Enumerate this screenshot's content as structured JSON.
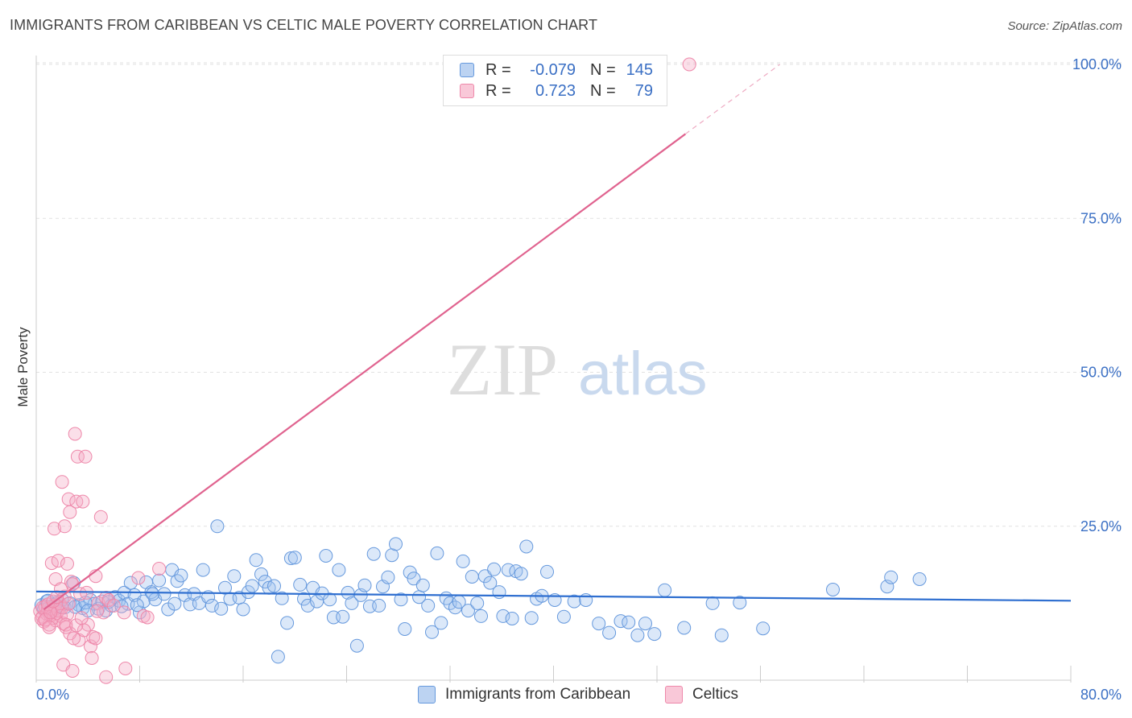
{
  "title": "IMMIGRANTS FROM CARIBBEAN VS CELTIC MALE POVERTY CORRELATION CHART",
  "source": "Source: ZipAtlas.com",
  "watermark": {
    "zip": "ZIP",
    "atlas": "atlas"
  },
  "legend": {
    "rows": [
      {
        "r_label": "R =",
        "r_value": "-0.079",
        "n_label": "N =",
        "n_value": "145",
        "color": "#6699dd"
      },
      {
        "r_label": "R =",
        "r_value": "0.723",
        "n_label": "N =",
        "n_value": "79",
        "color": "#ee88aa"
      }
    ]
  },
  "bottom_legend": {
    "items": [
      {
        "label": "Immigrants from Caribbean",
        "color": "#6699dd"
      },
      {
        "label": "Celtics",
        "color": "#ee88aa"
      }
    ]
  },
  "chart_data": {
    "type": "scatter",
    "title": "IMMIGRANTS FROM CARIBBEAN VS CELTIC MALE POVERTY CORRELATION CHART",
    "xlabel": "",
    "ylabel": "Male Poverty",
    "xlim": [
      0,
      80
    ],
    "ylim": [
      0,
      102
    ],
    "x_tick_labels": [
      "0.0%",
      "80.0%"
    ],
    "y_ticks": [
      25,
      50,
      75,
      100
    ],
    "y_tick_labels": [
      "25.0%",
      "50.0%",
      "75.0%",
      "100.0%"
    ],
    "grid": true,
    "legend_position": "top-center",
    "series": [
      {
        "name": "Immigrants from Caribbean",
        "color": "#6699dd",
        "trend": {
          "x": [
            0,
            80
          ],
          "y": [
            14.4,
            12.9
          ]
        },
        "points": [
          [
            0.4,
            12.2
          ],
          [
            0.6,
            11.5
          ],
          [
            0.8,
            12.8
          ],
          [
            1.0,
            11.0
          ],
          [
            1.2,
            12.0
          ],
          [
            1.4,
            11.4
          ],
          [
            1.6,
            12.6
          ],
          [
            1.9,
            12.0
          ],
          [
            2.2,
            11.8
          ],
          [
            2.6,
            12.5
          ],
          [
            2.9,
            15.8
          ],
          [
            3.3,
            12.2
          ],
          [
            3.6,
            11.7
          ],
          [
            4.2,
            13.0
          ],
          [
            4.5,
            12.4
          ],
          [
            4.8,
            11.6
          ],
          [
            5.1,
            12.8
          ],
          [
            5.4,
            11.3
          ],
          [
            5.8,
            12.1
          ],
          [
            6.1,
            13.5
          ],
          [
            6.4,
            12.9
          ],
          [
            6.8,
            14.2
          ],
          [
            7.1,
            12.4
          ],
          [
            7.3,
            15.8
          ],
          [
            7.6,
            13.8
          ],
          [
            8.0,
            11.0
          ],
          [
            8.3,
            12.8
          ],
          [
            8.5,
            15.9
          ],
          [
            8.9,
            14.3
          ],
          [
            9.2,
            13.1
          ],
          [
            9.5,
            16.2
          ],
          [
            9.9,
            14.0
          ],
          [
            10.2,
            11.5
          ],
          [
            10.5,
            17.9
          ],
          [
            10.9,
            16.1
          ],
          [
            11.2,
            17.0
          ],
          [
            11.5,
            13.8
          ],
          [
            11.9,
            12.3
          ],
          [
            12.2,
            14.0
          ],
          [
            12.6,
            12.5
          ],
          [
            12.9,
            17.9
          ],
          [
            13.3,
            13.5
          ],
          [
            13.6,
            12.1
          ],
          [
            14.0,
            25.0
          ],
          [
            14.3,
            11.6
          ],
          [
            14.6,
            15.0
          ],
          [
            15.0,
            13.2
          ],
          [
            15.3,
            16.9
          ],
          [
            15.7,
            13.4
          ],
          [
            16.0,
            11.5
          ],
          [
            16.4,
            14.3
          ],
          [
            16.7,
            15.3
          ],
          [
            17.0,
            19.5
          ],
          [
            17.4,
            17.2
          ],
          [
            17.7,
            16.0
          ],
          [
            18.0,
            15.0
          ],
          [
            18.4,
            15.3
          ],
          [
            18.7,
            3.8
          ],
          [
            19.0,
            13.3
          ],
          [
            19.4,
            9.3
          ],
          [
            19.7,
            19.8
          ],
          [
            20.0,
            19.9
          ],
          [
            20.4,
            15.5
          ],
          [
            20.7,
            13.2
          ],
          [
            21.0,
            12.1
          ],
          [
            21.4,
            15.0
          ],
          [
            21.7,
            12.8
          ],
          [
            22.1,
            14.1
          ],
          [
            22.4,
            20.2
          ],
          [
            22.7,
            13.1
          ],
          [
            23.0,
            10.2
          ],
          [
            23.4,
            17.9
          ],
          [
            23.7,
            10.3
          ],
          [
            24.1,
            14.2
          ],
          [
            24.4,
            12.5
          ],
          [
            24.8,
            5.6
          ],
          [
            25.1,
            13.8
          ],
          [
            25.4,
            15.4
          ],
          [
            25.8,
            12.0
          ],
          [
            26.1,
            20.5
          ],
          [
            26.5,
            12.1
          ],
          [
            26.8,
            15.2
          ],
          [
            27.2,
            16.7
          ],
          [
            27.5,
            20.3
          ],
          [
            27.8,
            22.1
          ],
          [
            28.2,
            13.1
          ],
          [
            28.5,
            8.3
          ],
          [
            28.9,
            17.5
          ],
          [
            29.2,
            16.5
          ],
          [
            29.6,
            13.5
          ],
          [
            29.9,
            15.4
          ],
          [
            30.3,
            12.1
          ],
          [
            30.6,
            7.8
          ],
          [
            31.0,
            20.6
          ],
          [
            31.3,
            9.3
          ],
          [
            31.7,
            13.3
          ],
          [
            32.0,
            12.5
          ],
          [
            32.4,
            11.8
          ],
          [
            32.7,
            12.7
          ],
          [
            33.0,
            19.3
          ],
          [
            33.4,
            11.3
          ],
          [
            33.7,
            16.8
          ],
          [
            34.1,
            12.5
          ],
          [
            34.4,
            10.4
          ],
          [
            34.7,
            16.9
          ],
          [
            35.1,
            15.8
          ],
          [
            35.4,
            18.0
          ],
          [
            35.8,
            14.3
          ],
          [
            36.1,
            10.4
          ],
          [
            36.5,
            17.9
          ],
          [
            36.8,
            10.0
          ],
          [
            37.1,
            17.7
          ],
          [
            37.5,
            17.3
          ],
          [
            37.9,
            21.7
          ],
          [
            38.3,
            10.1
          ],
          [
            38.7,
            13.2
          ],
          [
            39.1,
            13.7
          ],
          [
            39.5,
            17.6
          ],
          [
            40.1,
            13.0
          ],
          [
            40.8,
            10.3
          ],
          [
            41.6,
            12.8
          ],
          [
            42.5,
            13.0
          ],
          [
            43.5,
            9.2
          ],
          [
            44.3,
            7.7
          ],
          [
            45.2,
            9.6
          ],
          [
            45.8,
            9.4
          ],
          [
            46.5,
            7.3
          ],
          [
            47.1,
            9.2
          ],
          [
            47.8,
            7.5
          ],
          [
            48.6,
            14.6
          ],
          [
            50.1,
            8.5
          ],
          [
            52.3,
            12.5
          ],
          [
            53.0,
            7.3
          ],
          [
            54.4,
            12.6
          ],
          [
            56.2,
            8.4
          ],
          [
            61.6,
            14.7
          ],
          [
            65.8,
            15.2
          ],
          [
            66.1,
            16.7
          ],
          [
            68.3,
            16.4
          ],
          [
            0.9,
            12.9
          ],
          [
            1.5,
            12.3
          ],
          [
            2.0,
            13.1
          ],
          [
            3.0,
            11.9
          ],
          [
            3.8,
            12.6
          ],
          [
            4.0,
            11.3
          ],
          [
            5.6,
            12.7
          ],
          [
            6.6,
            12.0
          ],
          [
            7.8,
            12.2
          ],
          [
            9.0,
            14.0
          ],
          [
            10.7,
            12.4
          ]
        ]
      },
      {
        "name": "Celtics",
        "color": "#ee88aa",
        "trend": {
          "x": [
            0.6,
            50.2
          ],
          "y": [
            11.5,
            88.7
          ],
          "dashed_extension": {
            "x": [
              50.2,
              57.5
            ],
            "y": [
              88.7,
              100
            ]
          }
        },
        "points": [
          [
            0.3,
            11.2
          ],
          [
            0.5,
            10.3
          ],
          [
            0.6,
            9.5
          ],
          [
            0.7,
            12.0
          ],
          [
            0.8,
            10.8
          ],
          [
            0.9,
            11.6
          ],
          [
            1.0,
            9.0
          ],
          [
            1.1,
            10.5
          ],
          [
            1.2,
            11.4
          ],
          [
            1.3,
            10.1
          ],
          [
            1.4,
            12.1
          ],
          [
            1.5,
            9.7
          ],
          [
            1.6,
            10.9
          ],
          [
            1.7,
            11.3
          ],
          [
            1.8,
            12.5
          ],
          [
            1.9,
            10.4
          ],
          [
            2.0,
            11.8
          ],
          [
            2.1,
            9.2
          ],
          [
            2.2,
            13.6
          ],
          [
            2.3,
            8.6
          ],
          [
            2.4,
            10.7
          ],
          [
            2.5,
            12.4
          ],
          [
            0.4,
            10.0
          ],
          [
            0.5,
            11.8
          ],
          [
            0.7,
            9.8
          ],
          [
            0.9,
            12.3
          ],
          [
            1.1,
            11.0
          ],
          [
            1.3,
            12.8
          ],
          [
            1.6,
            13.5
          ],
          [
            1.2,
            19.0
          ],
          [
            1.4,
            24.6
          ],
          [
            1.5,
            16.4
          ],
          [
            1.7,
            19.4
          ],
          [
            1.9,
            14.8
          ],
          [
            2.0,
            32.2
          ],
          [
            2.2,
            25.0
          ],
          [
            2.4,
            18.9
          ],
          [
            2.5,
            29.4
          ],
          [
            2.6,
            27.3
          ],
          [
            2.7,
            16.0
          ],
          [
            2.8,
            15.6
          ],
          [
            3.0,
            40.0
          ],
          [
            3.1,
            29.0
          ],
          [
            3.2,
            36.3
          ],
          [
            3.4,
            14.0
          ],
          [
            3.6,
            29.0
          ],
          [
            3.8,
            36.3
          ],
          [
            4.0,
            9.0
          ],
          [
            4.2,
            5.5
          ],
          [
            4.4,
            7.0
          ],
          [
            4.6,
            16.9
          ],
          [
            4.8,
            12.5
          ],
          [
            5.0,
            26.5
          ],
          [
            5.2,
            11.0
          ],
          [
            5.4,
            13.4
          ],
          [
            5.6,
            13.0
          ],
          [
            6.0,
            12.1
          ],
          [
            6.8,
            11.0
          ],
          [
            7.9,
            16.6
          ],
          [
            8.3,
            10.4
          ],
          [
            8.6,
            10.2
          ],
          [
            9.5,
            18.1
          ],
          [
            2.1,
            2.5
          ],
          [
            2.8,
            1.5
          ],
          [
            3.3,
            6.5
          ],
          [
            3.7,
            8.1
          ],
          [
            4.3,
            3.6
          ],
          [
            4.6,
            6.8
          ],
          [
            5.4,
            0.5
          ],
          [
            6.9,
            1.9
          ],
          [
            2.3,
            9.0
          ],
          [
            2.6,
            7.6
          ],
          [
            2.9,
            6.8
          ],
          [
            3.1,
            8.9
          ],
          [
            3.5,
            10.1
          ],
          [
            3.9,
            14.2
          ],
          [
            4.7,
            11.2
          ],
          [
            50.5,
            100.0
          ],
          [
            1.0,
            8.6
          ]
        ]
      }
    ]
  }
}
